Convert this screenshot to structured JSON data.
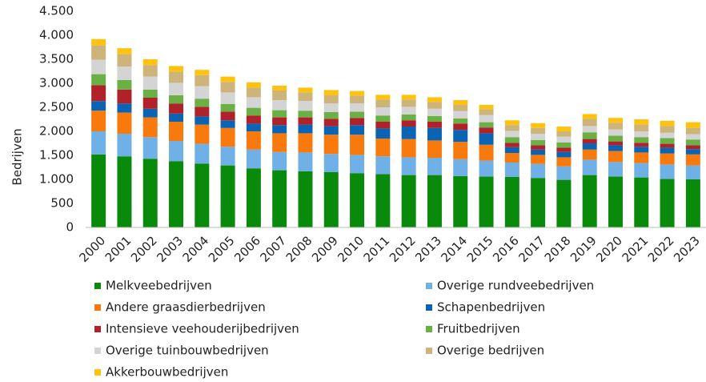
{
  "chart_data": {
    "type": "bar",
    "stacked": true,
    "ylabel": "Bedrijven",
    "categories": [
      "2000",
      "2001",
      "2002",
      "2003",
      "2004",
      "2005",
      "2006",
      "2007",
      "2008",
      "2009",
      "2010",
      "2011",
      "2012",
      "2013",
      "2014",
      "2015",
      "2016",
      "2017",
      "2018",
      "2019",
      "2020",
      "2021",
      "2022",
      "2023"
    ],
    "ylim": [
      0,
      4500
    ],
    "yticks": [
      0,
      500,
      {
        "value": 1000,
        "label": "1.000"
      },
      {
        "value": 1500,
        "label": "1.500"
      },
      {
        "value": 2000,
        "label": "2.000"
      },
      {
        "value": 2500,
        "label": "2.500"
      },
      {
        "value": 3000,
        "label": "3.000"
      },
      {
        "value": 3500,
        "label": "3.500"
      },
      {
        "value": 4000,
        "label": "4.000"
      },
      {
        "value": 4500,
        "label": "4.500"
      }
    ],
    "grid": false,
    "series": [
      {
        "name": "Melkveebedrijven",
        "color": "#0a8a0a",
        "values": [
          1520,
          1480,
          1430,
          1380,
          1330,
          1290,
          1230,
          1190,
          1170,
          1150,
          1130,
          1110,
          1090,
          1090,
          1070,
          1060,
          1050,
          1030,
          990,
          1090,
          1060,
          1040,
          1010,
          1000
        ]
      },
      {
        "name": "Overige rundveebedrijven",
        "color": "#6fb0e6",
        "values": [
          480,
          470,
          450,
          420,
          410,
          390,
          390,
          380,
          390,
          380,
          380,
          370,
          370,
          360,
          350,
          330,
          300,
          290,
          280,
          320,
          300,
          300,
          300,
          290
        ]
      },
      {
        "name": "Andere graasdierbedrijven",
        "color": "#f87a0c",
        "values": [
          430,
          440,
          410,
          400,
          400,
          390,
          380,
          390,
          400,
          400,
          420,
          370,
          380,
          360,
          360,
          330,
          200,
          190,
          190,
          210,
          230,
          220,
          230,
          230
        ]
      },
      {
        "name": "Schapenbedrijven",
        "color": "#0b63b4",
        "values": [
          200,
          190,
          180,
          170,
          170,
          160,
          160,
          170,
          180,
          180,
          200,
          210,
          260,
          260,
          250,
          240,
          120,
          110,
          110,
          130,
          120,
          120,
          120,
          110
        ]
      },
      {
        "name": "Intensieve veehouderijbedrijven",
        "color": "#b0212a",
        "values": [
          330,
          290,
          230,
          210,
          200,
          180,
          170,
          160,
          150,
          150,
          150,
          140,
          130,
          130,
          130,
          120,
          90,
          90,
          90,
          90,
          80,
          80,
          80,
          80
        ]
      },
      {
        "name": "Fruitbedrijven",
        "color": "#6ab044",
        "values": [
          230,
          200,
          170,
          170,
          170,
          160,
          160,
          150,
          140,
          140,
          130,
          130,
          120,
          120,
          110,
          110,
          120,
          110,
          110,
          140,
          120,
          120,
          120,
          120
        ]
      },
      {
        "name": "Overige tuinbouwbedrijven",
        "color": "#d4d4d4",
        "values": [
          300,
          280,
          270,
          260,
          260,
          240,
          220,
          210,
          200,
          180,
          170,
          170,
          160,
          150,
          150,
          150,
          130,
          130,
          120,
          130,
          130,
          120,
          110,
          110
        ]
      },
      {
        "name": "Overige bedrijven",
        "color": "#cdb47a",
        "values": [
          300,
          260,
          240,
          230,
          230,
          220,
          200,
          200,
          180,
          170,
          160,
          160,
          150,
          140,
          130,
          120,
          120,
          120,
          110,
          150,
          140,
          140,
          140,
          130
        ]
      },
      {
        "name": "Akkerbouwbedrijven",
        "color": "#ffc20e",
        "values": [
          130,
          120,
          120,
          120,
          110,
          110,
          110,
          100,
          100,
          110,
          100,
          100,
          100,
          100,
          100,
          90,
          100,
          100,
          100,
          100,
          100,
          110,
          110,
          120
        ]
      }
    ]
  }
}
